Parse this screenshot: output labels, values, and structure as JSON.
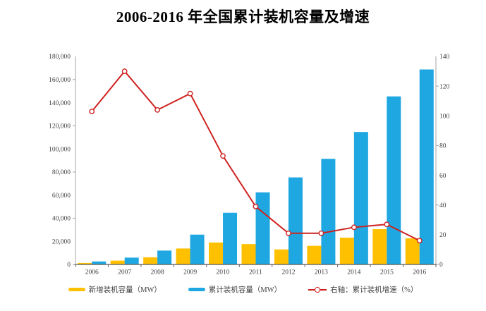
{
  "title": "2006-2016 年全国累计装机容量及增速",
  "legend": {
    "new_label": "新增装机容量（MW）",
    "cum_label": "累计装机容量（MW）",
    "growth_label": "右轴：累计装机增速（%）"
  },
  "colors": {
    "new_capacity": "#FFC000",
    "cumulative": "#1EA7E1",
    "growth_line": "#CE2220",
    "marker_fill": "#FFFFFF",
    "axis_side": "#A6A6A6",
    "axis_bottom": "#595959",
    "tick_text": "#3F3F3F"
  },
  "chart_data": {
    "type": "bar",
    "subtype": "grouped-bars-with-line-overlay-dual-axis",
    "title": "2006-2016 年全国累计装机容量及增速",
    "categories": [
      "2006",
      "2007",
      "2008",
      "2009",
      "2010",
      "2011",
      "2012",
      "2013",
      "2014",
      "2015",
      "2016"
    ],
    "series": [
      {
        "name": "新增装机容量（MW）",
        "type": "bar",
        "axis": "left",
        "color": "#FFC000",
        "values": [
          1300,
          3300,
          6200,
          13800,
          19000,
          17600,
          13000,
          16100,
          23200,
          30500,
          22600
        ]
      },
      {
        "name": "累计装机容量（MW）",
        "type": "bar",
        "axis": "left",
        "color": "#1EA7E1",
        "values": [
          2600,
          5900,
          12000,
          25800,
          44700,
          62400,
          75300,
          91400,
          114600,
          145400,
          168700
        ]
      },
      {
        "name": "右轴：累计装机增速（%）",
        "type": "line",
        "axis": "right",
        "color": "#CE2220",
        "values": [
          103,
          130,
          104,
          115,
          73,
          39,
          21,
          21,
          25,
          27,
          16
        ]
      }
    ],
    "left_axis": {
      "min": 0,
      "max": 180000,
      "step": 20000
    },
    "right_axis": {
      "min": 0,
      "max": 140,
      "step": 20
    },
    "grid": false,
    "legend_position": "bottom"
  }
}
